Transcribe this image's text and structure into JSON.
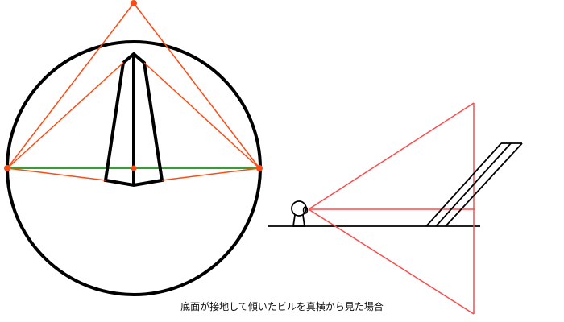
{
  "caption": "底面が接地して傾いたビルを真横から見た場合",
  "colors": {
    "outline": "#000000",
    "sightline_orange": "#ff4a12",
    "horizon_green": "#2aa52a",
    "sightline_red": "#ff4a4a"
  }
}
